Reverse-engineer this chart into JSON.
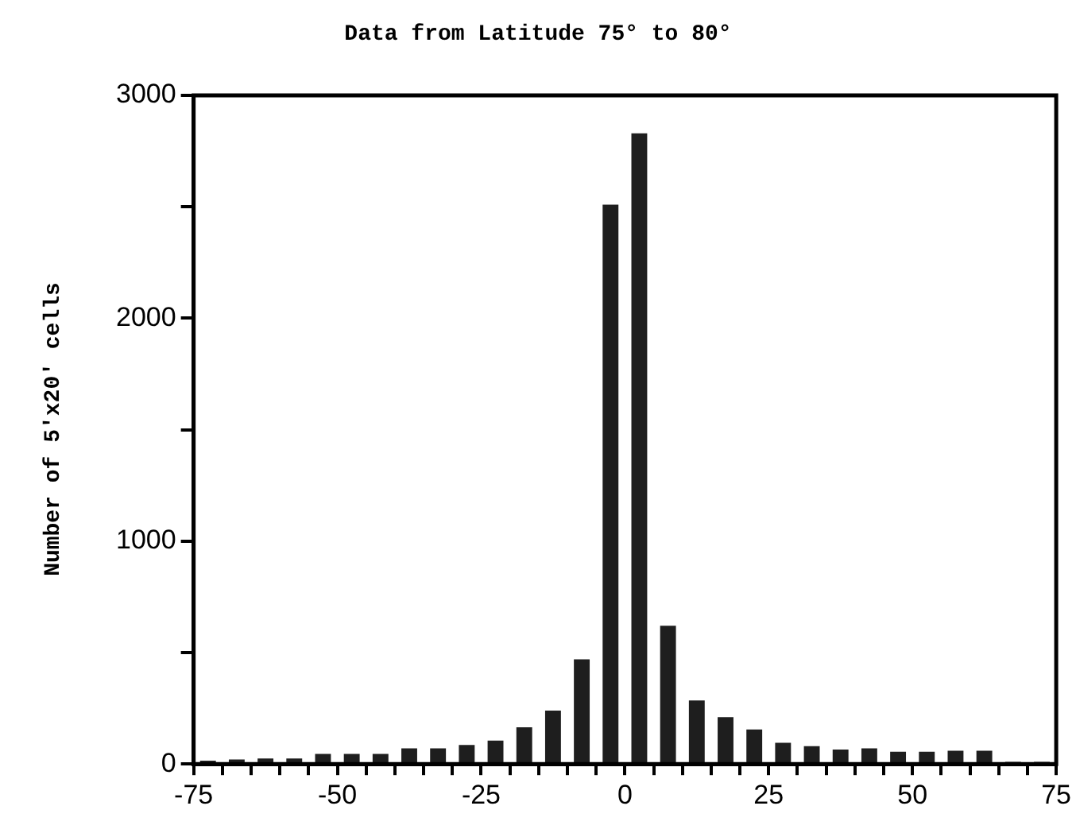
{
  "chart_data": {
    "type": "histogram",
    "title": "Data from Latitude 75° to 80°",
    "ylabel": "Number of 5'x20' cells",
    "bins": [
      -75,
      -70,
      -65,
      -60,
      -55,
      -50,
      -45,
      -40,
      -35,
      -30,
      -25,
      -20,
      -15,
      -10,
      -5,
      0,
      5,
      10,
      15,
      20,
      25,
      30,
      35,
      40,
      45,
      50,
      55,
      60,
      65,
      70,
      75
    ],
    "values": [
      15,
      20,
      25,
      25,
      45,
      45,
      45,
      70,
      70,
      85,
      105,
      165,
      240,
      470,
      2510,
      2830,
      620,
      285,
      210,
      155,
      95,
      80,
      65,
      70,
      55,
      55,
      60,
      60,
      10,
      10
    ],
    "color": "#1e1e1e",
    "xlim": [
      -75,
      75
    ],
    "xticks": [
      -75,
      {
        "value": -70,
        "label": null
      },
      {
        "value": -65,
        "label": null
      },
      {
        "value": -60,
        "label": null
      },
      {
        "value": -55,
        "label": null
      },
      -50,
      {
        "value": -45,
        "label": null
      },
      {
        "value": -40,
        "label": null
      },
      {
        "value": -35,
        "label": null
      },
      {
        "value": -30,
        "label": null
      },
      -25,
      {
        "value": -20,
        "label": null
      },
      {
        "value": -15,
        "label": null
      },
      {
        "value": -10,
        "label": null
      },
      {
        "value": -5,
        "label": null
      },
      0,
      {
        "value": 5,
        "label": null
      },
      {
        "value": 10,
        "label": null
      },
      {
        "value": 15,
        "label": null
      },
      {
        "value": 20,
        "label": null
      },
      25,
      {
        "value": 30,
        "label": null
      },
      {
        "value": 35,
        "label": null
      },
      {
        "value": 40,
        "label": null
      },
      {
        "value": 45,
        "label": null
      },
      50,
      {
        "value": 55,
        "label": null
      },
      {
        "value": 60,
        "label": null
      },
      {
        "value": 65,
        "label": null
      },
      {
        "value": 70,
        "label": null
      },
      75
    ],
    "ylim": [
      0,
      3000
    ],
    "yticks": [
      0,
      {
        "value": 500,
        "label": null
      },
      1000,
      {
        "value": 1500,
        "label": null
      },
      2000,
      {
        "value": 2500,
        "label": null
      },
      3000
    ],
    "grid": false,
    "legend": false
  }
}
